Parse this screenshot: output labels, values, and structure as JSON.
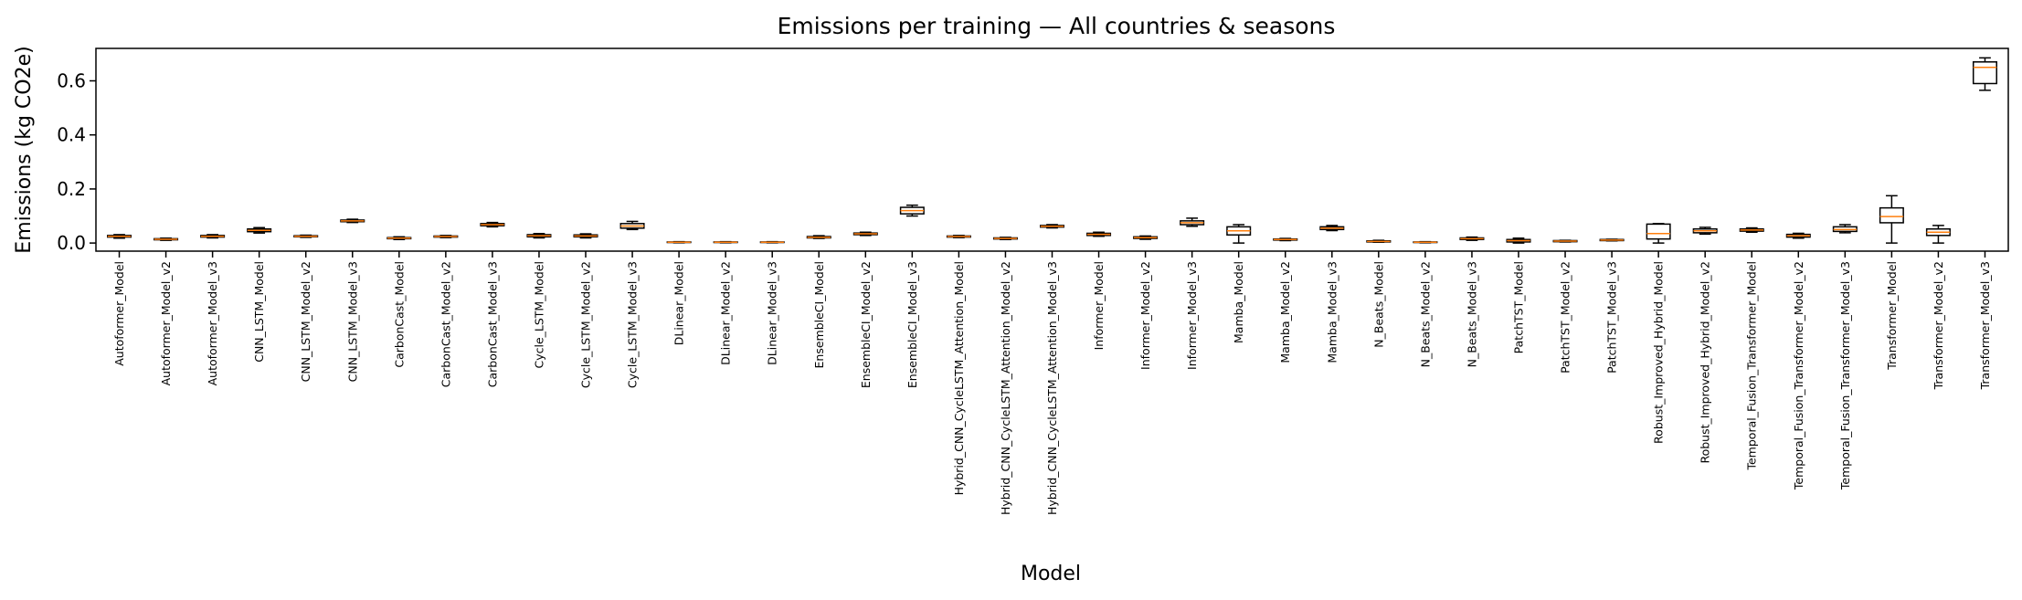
{
  "chart_data": {
    "type": "box",
    "title": "Emissions per training — All countries & seasons",
    "xlabel": "Model",
    "ylabel": "Emissions (kg CO2e)",
    "ylim": [
      -0.03,
      0.72
    ],
    "yticks": [
      0.0,
      0.2,
      0.4,
      0.6
    ],
    "ytick_labels": [
      "0.0",
      "0.2",
      "0.4",
      "0.6"
    ],
    "grid": false,
    "colors": {
      "box": "#000000",
      "median": "#ff7f0e",
      "background": "#ffffff"
    },
    "categories": [
      "Autoformer_Model",
      "Autoformer_Model_v2",
      "Autoformer_Model_v3",
      "CNN_LSTM_Model",
      "CNN_LSTM_Model_v2",
      "CNN_LSTM_Model_v3",
      "CarbonCast_Model",
      "CarbonCast_Model_v2",
      "CarbonCast_Model_v3",
      "Cycle_LSTM_Model",
      "Cycle_LSTM_Model_v2",
      "Cycle_LSTM_Model_v3",
      "DLinear_Model",
      "DLinear_Model_v2",
      "DLinear_Model_v3",
      "EnsembleCI_Model",
      "EnsembleCI_Model_v2",
      "EnsembleCI_Model_v3",
      "Hybrid_CNN_CycleLSTM_Attention_Model",
      "Hybrid_CNN_CycleLSTM_Attention_Model_v2",
      "Hybrid_CNN_CycleLSTM_Attention_Model_v3",
      "Informer_Model",
      "Informer_Model_v2",
      "Informer_Model_v3",
      "Mamba_Model",
      "Mamba_Model_v2",
      "Mamba_Model_v3",
      "N_Beats_Model",
      "N_Beats_Model_v2",
      "N_Beats_Model_v3",
      "PatchTST_Model",
      "PatchTST_Model_v2",
      "PatchTST_Model_v3",
      "Robust_Improved_Hybrid_Model",
      "Robust_Improved_Hybrid_Model_v2",
      "Temporal_Fusion_Transformer_Model",
      "Temporal_Fusion_Transformer_Model_v2",
      "Temporal_Fusion_Transformer_Model_v3",
      "Transformer_Model",
      "Transformer_Model_v2",
      "Transformer_Model_v3"
    ],
    "boxes": [
      {
        "min": 0.018,
        "q1": 0.022,
        "median": 0.025,
        "q3": 0.028,
        "max": 0.031
      },
      {
        "min": 0.01,
        "q1": 0.012,
        "median": 0.014,
        "q3": 0.016,
        "max": 0.018
      },
      {
        "min": 0.019,
        "q1": 0.022,
        "median": 0.025,
        "q3": 0.028,
        "max": 0.031
      },
      {
        "min": 0.037,
        "q1": 0.042,
        "median": 0.047,
        "q3": 0.052,
        "max": 0.057
      },
      {
        "min": 0.021,
        "q1": 0.023,
        "median": 0.025,
        "q3": 0.027,
        "max": 0.029
      },
      {
        "min": 0.076,
        "q1": 0.079,
        "median": 0.082,
        "q3": 0.085,
        "max": 0.088
      },
      {
        "min": 0.013,
        "q1": 0.016,
        "median": 0.018,
        "q3": 0.02,
        "max": 0.023
      },
      {
        "min": 0.02,
        "q1": 0.022,
        "median": 0.024,
        "q3": 0.026,
        "max": 0.028
      },
      {
        "min": 0.06,
        "q1": 0.064,
        "median": 0.068,
        "q3": 0.072,
        "max": 0.076
      },
      {
        "min": 0.019,
        "q1": 0.023,
        "median": 0.027,
        "q3": 0.031,
        "max": 0.035
      },
      {
        "min": 0.019,
        "q1": 0.023,
        "median": 0.026,
        "q3": 0.03,
        "max": 0.034
      },
      {
        "min": 0.05,
        "q1": 0.055,
        "median": 0.063,
        "q3": 0.072,
        "max": 0.08
      },
      {
        "min": 0.001,
        "q1": 0.002,
        "median": 0.003,
        "q3": 0.004,
        "max": 0.005
      },
      {
        "min": 0.001,
        "q1": 0.002,
        "median": 0.003,
        "q3": 0.004,
        "max": 0.005
      },
      {
        "min": 0.001,
        "q1": 0.002,
        "median": 0.003,
        "q3": 0.004,
        "max": 0.005
      },
      {
        "min": 0.017,
        "q1": 0.019,
        "median": 0.021,
        "q3": 0.024,
        "max": 0.027
      },
      {
        "min": 0.028,
        "q1": 0.031,
        "median": 0.034,
        "q3": 0.037,
        "max": 0.04
      },
      {
        "min": 0.1,
        "q1": 0.108,
        "median": 0.12,
        "q3": 0.132,
        "max": 0.14
      },
      {
        "min": 0.02,
        "q1": 0.022,
        "median": 0.024,
        "q3": 0.026,
        "max": 0.028
      },
      {
        "min": 0.013,
        "q1": 0.015,
        "median": 0.017,
        "q3": 0.019,
        "max": 0.021
      },
      {
        "min": 0.056,
        "q1": 0.059,
        "median": 0.062,
        "q3": 0.065,
        "max": 0.068
      },
      {
        "min": 0.025,
        "q1": 0.028,
        "median": 0.032,
        "q3": 0.036,
        "max": 0.04
      },
      {
        "min": 0.014,
        "q1": 0.017,
        "median": 0.02,
        "q3": 0.023,
        "max": 0.026
      },
      {
        "min": 0.062,
        "q1": 0.068,
        "median": 0.075,
        "q3": 0.082,
        "max": 0.092
      },
      {
        "min": 0.0,
        "q1": 0.03,
        "median": 0.045,
        "q3": 0.06,
        "max": 0.068
      },
      {
        "min": 0.009,
        "q1": 0.011,
        "median": 0.013,
        "q3": 0.015,
        "max": 0.017
      },
      {
        "min": 0.046,
        "q1": 0.05,
        "median": 0.055,
        "q3": 0.06,
        "max": 0.065
      },
      {
        "min": 0.003,
        "q1": 0.004,
        "median": 0.006,
        "q3": 0.008,
        "max": 0.01
      },
      {
        "min": 0.001,
        "q1": 0.002,
        "median": 0.003,
        "q3": 0.004,
        "max": 0.005
      },
      {
        "min": 0.01,
        "q1": 0.013,
        "median": 0.016,
        "q3": 0.019,
        "max": 0.022
      },
      {
        "min": 0.0,
        "q1": 0.004,
        "median": 0.009,
        "q3": 0.013,
        "max": 0.018
      },
      {
        "min": 0.004,
        "q1": 0.005,
        "median": 0.007,
        "q3": 0.009,
        "max": 0.01
      },
      {
        "min": 0.008,
        "q1": 0.009,
        "median": 0.011,
        "q3": 0.013,
        "max": 0.014
      },
      {
        "min": 0.0,
        "q1": 0.015,
        "median": 0.035,
        "q3": 0.07,
        "max": 0.072
      },
      {
        "min": 0.033,
        "q1": 0.038,
        "median": 0.045,
        "q3": 0.052,
        "max": 0.058
      },
      {
        "min": 0.04,
        "q1": 0.044,
        "median": 0.048,
        "q3": 0.052,
        "max": 0.056
      },
      {
        "min": 0.018,
        "q1": 0.022,
        "median": 0.027,
        "q3": 0.032,
        "max": 0.036
      },
      {
        "min": 0.038,
        "q1": 0.043,
        "median": 0.05,
        "q3": 0.06,
        "max": 0.068
      },
      {
        "min": 0.0,
        "q1": 0.075,
        "median": 0.098,
        "q3": 0.13,
        "max": 0.175
      },
      {
        "min": 0.0,
        "q1": 0.028,
        "median": 0.04,
        "q3": 0.052,
        "max": 0.065
      },
      {
        "min": 0.565,
        "q1": 0.59,
        "median": 0.65,
        "q3": 0.67,
        "max": 0.685
      }
    ]
  }
}
